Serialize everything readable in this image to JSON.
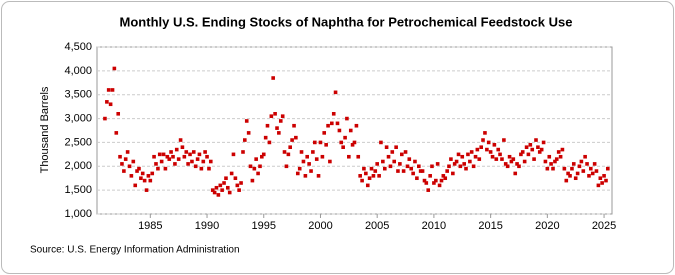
{
  "chart_data": {
    "type": "scatter",
    "title": "Monthly U.S. Ending Stocks of Naphtha for Petrochemical Feedstock Use",
    "y_label": "Thousand Barrels",
    "source": "Source: U.S. Energy Information Administration",
    "xlim": [
      1980.3,
      2025.7
    ],
    "xticks": [
      1985,
      1990,
      1995,
      2000,
      2005,
      2010,
      2015,
      2020,
      2025
    ],
    "ylim": [
      1000,
      4500
    ],
    "yticks": [
      {
        "value": 1000,
        "label": "1,000"
      },
      {
        "value": 1500,
        "label": "1,500"
      },
      {
        "value": 2000,
        "label": "2,000"
      },
      {
        "value": 2500,
        "label": "2,500"
      },
      {
        "value": 3000,
        "label": "3,000"
      },
      {
        "value": 3500,
        "label": "3,500"
      },
      {
        "value": 4000,
        "label": "4,000"
      },
      {
        "value": 4500,
        "label": "4,500"
      }
    ],
    "grid": true,
    "color": "#cc0000",
    "x": [
      1981,
      1981.17,
      1981.33,
      1981.5,
      1981.67,
      1981.83,
      1982,
      1982.17,
      1982.33,
      1982.5,
      1982.67,
      1982.83,
      1983,
      1983.17,
      1983.33,
      1983.5,
      1983.67,
      1983.83,
      1984,
      1984.17,
      1984.33,
      1984.5,
      1984.67,
      1984.83,
      1985,
      1985.17,
      1985.33,
      1985.5,
      1985.67,
      1985.83,
      1986,
      1986.17,
      1986.33,
      1986.5,
      1986.67,
      1986.83,
      1987,
      1987.17,
      1987.33,
      1987.5,
      1987.67,
      1987.83,
      1988,
      1988.17,
      1988.33,
      1988.5,
      1988.67,
      1988.83,
      1989,
      1989.17,
      1989.33,
      1989.5,
      1989.67,
      1989.83,
      1990,
      1990.17,
      1990.33,
      1990.5,
      1990.67,
      1990.83,
      1991,
      1991.17,
      1991.33,
      1991.5,
      1991.67,
      1991.83,
      1992,
      1992.17,
      1992.33,
      1992.5,
      1992.67,
      1992.83,
      1993,
      1993.17,
      1993.33,
      1993.5,
      1993.67,
      1993.83,
      1994,
      1994.17,
      1994.33,
      1994.5,
      1994.67,
      1994.83,
      1995,
      1995.17,
      1995.33,
      1995.5,
      1995.67,
      1995.83,
      1996,
      1996.17,
      1996.33,
      1996.5,
      1996.67,
      1996.83,
      1997,
      1997.17,
      1997.33,
      1997.5,
      1997.67,
      1997.83,
      1998,
      1998.17,
      1998.33,
      1998.5,
      1998.67,
      1998.83,
      1999,
      1999.17,
      1999.33,
      1999.5,
      1999.67,
      1999.83,
      2000,
      2000.17,
      2000.33,
      2000.5,
      2000.67,
      2000.83,
      2001,
      2001.17,
      2001.33,
      2001.5,
      2001.67,
      2001.83,
      2002,
      2002.17,
      2002.33,
      2002.5,
      2002.67,
      2002.83,
      2003,
      2003.17,
      2003.33,
      2003.5,
      2003.67,
      2003.83,
      2004,
      2004.17,
      2004.33,
      2004.5,
      2004.67,
      2004.83,
      2005,
      2005.17,
      2005.33,
      2005.5,
      2005.67,
      2005.83,
      2006,
      2006.17,
      2006.33,
      2006.5,
      2006.67,
      2006.83,
      2007,
      2007.17,
      2007.33,
      2007.5,
      2007.67,
      2007.83,
      2008,
      2008.17,
      2008.33,
      2008.5,
      2008.67,
      2008.83,
      2009,
      2009.17,
      2009.33,
      2009.5,
      2009.67,
      2009.83,
      2010,
      2010.17,
      2010.33,
      2010.5,
      2010.67,
      2010.83,
      2011,
      2011.17,
      2011.33,
      2011.5,
      2011.67,
      2011.83,
      2012,
      2012.17,
      2012.33,
      2012.5,
      2012.67,
      2012.83,
      2013,
      2013.17,
      2013.33,
      2013.5,
      2013.67,
      2013.83,
      2014,
      2014.17,
      2014.33,
      2014.5,
      2014.67,
      2014.83,
      2015,
      2015.17,
      2015.33,
      2015.5,
      2015.67,
      2015.83,
      2016,
      2016.17,
      2016.33,
      2016.5,
      2016.67,
      2016.83,
      2017,
      2017.17,
      2017.33,
      2017.5,
      2017.67,
      2017.83,
      2018,
      2018.17,
      2018.33,
      2018.5,
      2018.67,
      2018.83,
      2019,
      2019.17,
      2019.33,
      2019.5,
      2019.67,
      2019.83,
      2020,
      2020.17,
      2020.33,
      2020.5,
      2020.67,
      2020.83,
      2021,
      2021.17,
      2021.33,
      2021.5,
      2021.67,
      2021.83,
      2022,
      2022.17,
      2022.33,
      2022.5,
      2022.67,
      2022.83,
      2023,
      2023.17,
      2023.33,
      2023.5,
      2023.67,
      2023.83,
      2024,
      2024.17,
      2024.33,
      2024.5,
      2024.67,
      2024.83,
      2025,
      2025.17,
      2025.33
    ],
    "values": [
      3000,
      3350,
      3600,
      3300,
      3600,
      4050,
      2700,
      3100,
      2200,
      2050,
      1900,
      2150,
      2300,
      2000,
      1800,
      2100,
      1600,
      1900,
      1950,
      1750,
      1850,
      1700,
      1500,
      1800,
      1700,
      1850,
      2200,
      2050,
      1950,
      2250,
      2100,
      2250,
      1950,
      2200,
      2150,
      2300,
      2200,
      2050,
      2350,
      2150,
      2550,
      2400,
      2200,
      2300,
      2050,
      2250,
      2100,
      2300,
      2000,
      2150,
      2250,
      1950,
      2100,
      2300,
      2200,
      1950,
      2100,
      1500,
      1450,
      1550,
      1400,
      1600,
      1500,
      1650,
      1750,
      1550,
      1450,
      1850,
      2250,
      1750,
      1600,
      1500,
      1650,
      2300,
      2550,
      2950,
      2700,
      2000,
      1700,
      1950,
      2150,
      1850,
      2000,
      2200,
      2250,
      2600,
      2850,
      2500,
      3050,
      3850,
      3100,
      2800,
      2700,
      2950,
      3050,
      2300,
      2000,
      2250,
      2400,
      2550,
      2850,
      2600,
      1850,
      1950,
      2300,
      2100,
      1800,
      2200,
      2050,
      1900,
      2300,
      2500,
      2150,
      1800,
      2500,
      2200,
      2700,
      2450,
      2850,
      2100,
      2900,
      3100,
      3550,
      2900,
      2750,
      2500,
      2400,
      2600,
      3000,
      2200,
      2750,
      2450,
      2500,
      2850,
      2200,
      1800,
      1700,
      1950,
      1850,
      1600,
      1750,
      1950,
      1800,
      1900,
      2050,
      1800,
      2500,
      2100,
      1950,
      2400,
      2200,
      2000,
      2300,
      2100,
      2400,
      1900,
      2050,
      2250,
      1900,
      2300,
      2000,
      2150,
      1950,
      1850,
      2100,
      1750,
      2000,
      1900,
      1900,
      1700,
      1650,
      1500,
      1800,
      2000,
      1650,
      1700,
      2050,
      1600,
      1700,
      1800,
      1750,
      1900,
      2000,
      2150,
      1850,
      2050,
      2100,
      2250,
      2000,
      2200,
      2050,
      1950,
      2250,
      2100,
      2300,
      2000,
      2200,
      2350,
      2150,
      2400,
      2550,
      2700,
      2350,
      2500,
      2300,
      2200,
      2450,
      2150,
      2350,
      2250,
      2150,
      2550,
      2050,
      2000,
      2200,
      2100,
      2150,
      1850,
      2050,
      2000,
      2250,
      2300,
      2100,
      2400,
      2250,
      2450,
      2350,
      2150,
      2550,
      2400,
      2300,
      2350,
      2500,
      2100,
      1950,
      2200,
      2050,
      1950,
      2100,
      2150,
      2300,
      2200,
      2350,
      1950,
      1700,
      1850,
      1800,
      1950,
      2050,
      1750,
      1850,
      2000,
      2100,
      1900,
      2200,
      2050,
      1800,
      1950,
      1850,
      2050,
      1900,
      1600,
      1750,
      1650,
      1800,
      1700,
      1950
    ]
  }
}
